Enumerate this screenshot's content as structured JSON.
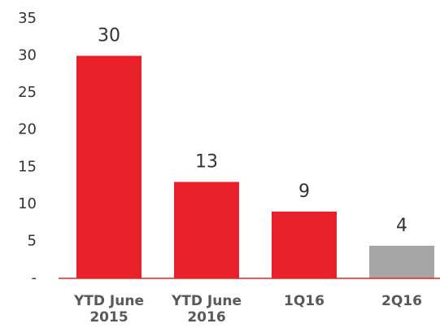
{
  "chart_data": {
    "type": "bar",
    "categories": [
      "YTD June 2015",
      "YTD June 2016",
      "1Q16",
      "2Q16"
    ],
    "values": [
      30,
      13,
      9,
      4.4
    ],
    "value_labels": [
      "30",
      "13",
      "9",
      "4"
    ],
    "colors": [
      "#e8202a",
      "#e8202a",
      "#e8202a",
      "#a6a6a6"
    ],
    "axis_color": "#e8202a",
    "ylim": [
      0,
      35
    ],
    "yticks": [
      {
        "value": 0,
        "label": "-"
      },
      5,
      10,
      15,
      20,
      25,
      30,
      35
    ],
    "grid": false
  }
}
